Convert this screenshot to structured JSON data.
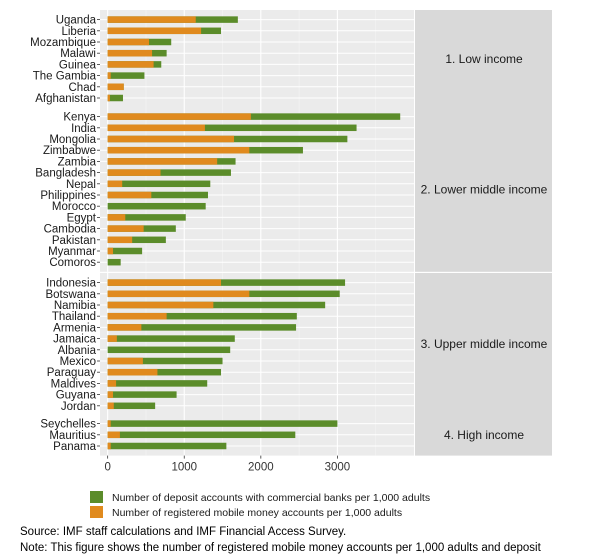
{
  "chart_data": {
    "type": "bar",
    "orientation": "horizontal",
    "stacked": true,
    "xlim": [
      -100,
      4000
    ],
    "x_ticks": [
      0,
      1000,
      2000,
      3000
    ],
    "x_tick_labels": [
      "0",
      "1000",
      "2000",
      "3000"
    ],
    "grid": true,
    "legend_position": "bottom",
    "series": [
      {
        "name": "Number of deposit accounts with commercial banks per 1,000 adults",
        "color": "#5b8c2a"
      },
      {
        "name": "Number of registered mobile money accounts per 1,000 adults",
        "color": "#e08a1e"
      }
    ],
    "panels": [
      {
        "label": "1. Low income",
        "rows": [
          {
            "country": "Uganda",
            "mobile_money": 1150,
            "deposit": 1700
          },
          {
            "country": "Liberia",
            "mobile_money": 1220,
            "deposit": 1480
          },
          {
            "country": "Mozambique",
            "mobile_money": 540,
            "deposit": 830
          },
          {
            "country": "Malawi",
            "mobile_money": 580,
            "deposit": 770
          },
          {
            "country": "Guinea",
            "mobile_money": 600,
            "deposit": 700
          },
          {
            "country": "The Gambia",
            "mobile_money": 40,
            "deposit": 480
          },
          {
            "country": "Chad",
            "mobile_money": 210,
            "deposit": 210
          },
          {
            "country": "Afghanistan",
            "mobile_money": 30,
            "deposit": 200
          }
        ]
      },
      {
        "label": "2. Lower middle income",
        "rows": [
          {
            "country": "Kenya",
            "mobile_money": 1870,
            "deposit": 3820
          },
          {
            "country": "India",
            "mobile_money": 1270,
            "deposit": 3250
          },
          {
            "country": "Mongolia",
            "mobile_money": 1650,
            "deposit": 3130
          },
          {
            "country": "Zimbabwe",
            "mobile_money": 1850,
            "deposit": 2550
          },
          {
            "country": "Zambia",
            "mobile_money": 1430,
            "deposit": 1670
          },
          {
            "country": "Bangladesh",
            "mobile_money": 690,
            "deposit": 1610
          },
          {
            "country": "Nepal",
            "mobile_money": 190,
            "deposit": 1340
          },
          {
            "country": "Philippines",
            "mobile_money": 570,
            "deposit": 1310
          },
          {
            "country": "Morocco",
            "mobile_money": 0,
            "deposit": 1280
          },
          {
            "country": "Egypt",
            "mobile_money": 230,
            "deposit": 1020
          },
          {
            "country": "Cambodia",
            "mobile_money": 470,
            "deposit": 890
          },
          {
            "country": "Pakistan",
            "mobile_money": 320,
            "deposit": 760
          },
          {
            "country": "Myanmar",
            "mobile_money": 70,
            "deposit": 450
          },
          {
            "country": "Comoros",
            "mobile_money": 0,
            "deposit": 170
          }
        ]
      },
      {
        "label": "3. Upper middle income",
        "rows": [
          {
            "country": "Indonesia",
            "mobile_money": 1480,
            "deposit": 3100
          },
          {
            "country": "Botswana",
            "mobile_money": 1850,
            "deposit": 3030
          },
          {
            "country": "Namibia",
            "mobile_money": 1380,
            "deposit": 2840
          },
          {
            "country": "Thailand",
            "mobile_money": 770,
            "deposit": 2470
          },
          {
            "country": "Armenia",
            "mobile_money": 440,
            "deposit": 2460
          },
          {
            "country": "Jamaica",
            "mobile_money": 120,
            "deposit": 1660
          },
          {
            "country": "Albania",
            "mobile_money": 0,
            "deposit": 1600
          },
          {
            "country": "Mexico",
            "mobile_money": 460,
            "deposit": 1500
          },
          {
            "country": "Paraguay",
            "mobile_money": 650,
            "deposit": 1480
          },
          {
            "country": "Maldives",
            "mobile_money": 110,
            "deposit": 1300
          },
          {
            "country": "Guyana",
            "mobile_money": 70,
            "deposit": 900
          },
          {
            "country": "Jordan",
            "mobile_money": 80,
            "deposit": 620
          }
        ]
      },
      {
        "label": "4. High income",
        "rows": [
          {
            "country": "Seychelles",
            "mobile_money": 40,
            "deposit": 3000
          },
          {
            "country": "Mauritius",
            "mobile_money": 160,
            "deposit": 2450
          },
          {
            "country": "Panama",
            "mobile_money": 40,
            "deposit": 1550
          }
        ]
      }
    ]
  },
  "notes": {
    "source": "Source: IMF staff calculations and IMF Financial Access Survey.",
    "note": "Note: This figure shows the number of registered mobile money accounts per 1,000 adults and deposit"
  }
}
